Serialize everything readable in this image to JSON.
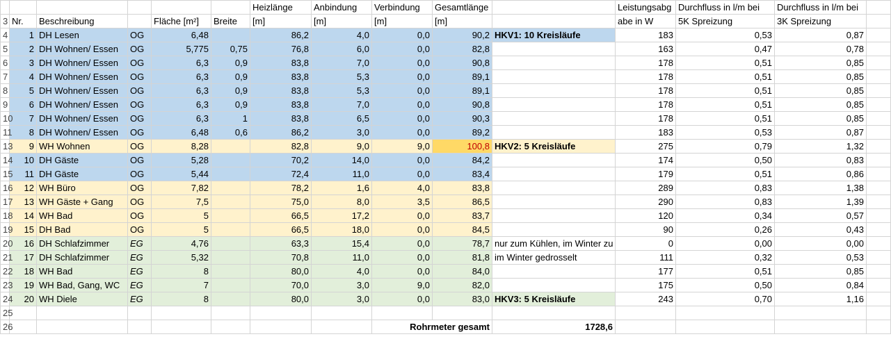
{
  "headers": {
    "row_a": {
      "row_num": "",
      "nr": "",
      "beschreibung": "",
      "etage": "",
      "flaeche": "",
      "breite": "",
      "heizlaenge": "Heizlänge",
      "anbindung": "Anbindung",
      "verbindung": "Verbindung",
      "gesamtlaenge": "Gesamtlänge",
      "note": "",
      "leistung": "Leistungsabg",
      "durchfluss5k": "Durchfluss in l/m bei",
      "durchfluss3k": "Durchfluss in l/m bei"
    },
    "row_b": {
      "row_num": "3",
      "nr": "Nr.",
      "beschreibung": "Beschreibung",
      "etage": "",
      "flaeche": "Fläche [m²]",
      "breite": "Breite",
      "heizlaenge": "[m]",
      "anbindung": "[m]",
      "verbindung": "[m]",
      "gesamtlaenge": "[m]",
      "note": "",
      "leistung": "abe in W",
      "durchfluss5k": "5K Spreizung",
      "durchfluss3k": "3K Spreizung"
    }
  },
  "rows": [
    {
      "row_num": "4",
      "nr": "1",
      "beschreibung": "DH Lesen",
      "etage": "OG",
      "flaeche": "6,48",
      "breite": "",
      "heizlaenge": "86,2",
      "anbindung": "4,0",
      "verbindung": "0,0",
      "gesamtlaenge": "90,2",
      "note": "HKV1: 10 Kreisläufe",
      "leistung": "183",
      "durchfluss5k": "0,53",
      "durchfluss3k": "0,87"
    },
    {
      "row_num": "5",
      "nr": "2",
      "beschreibung": "DH Wohnen/ Essen",
      "etage": "OG",
      "flaeche": "5,775",
      "breite": "0,75",
      "heizlaenge": "76,8",
      "anbindung": "6,0",
      "verbindung": "0,0",
      "gesamtlaenge": "82,8",
      "note": "",
      "leistung": "163",
      "durchfluss5k": "0,47",
      "durchfluss3k": "0,78"
    },
    {
      "row_num": "6",
      "nr": "3",
      "beschreibung": "DH Wohnen/ Essen",
      "etage": "OG",
      "flaeche": "6,3",
      "breite": "0,9",
      "heizlaenge": "83,8",
      "anbindung": "7,0",
      "verbindung": "0,0",
      "gesamtlaenge": "90,8",
      "note": "",
      "leistung": "178",
      "durchfluss5k": "0,51",
      "durchfluss3k": "0,85"
    },
    {
      "row_num": "7",
      "nr": "4",
      "beschreibung": "DH Wohnen/ Essen",
      "etage": "OG",
      "flaeche": "6,3",
      "breite": "0,9",
      "heizlaenge": "83,8",
      "anbindung": "5,3",
      "verbindung": "0,0",
      "gesamtlaenge": "89,1",
      "note": "",
      "leistung": "178",
      "durchfluss5k": "0,51",
      "durchfluss3k": "0,85"
    },
    {
      "row_num": "8",
      "nr": "5",
      "beschreibung": "DH Wohnen/ Essen",
      "etage": "OG",
      "flaeche": "6,3",
      "breite": "0,9",
      "heizlaenge": "83,8",
      "anbindung": "5,3",
      "verbindung": "0,0",
      "gesamtlaenge": "89,1",
      "note": "",
      "leistung": "178",
      "durchfluss5k": "0,51",
      "durchfluss3k": "0,85"
    },
    {
      "row_num": "9",
      "nr": "6",
      "beschreibung": "DH Wohnen/ Essen",
      "etage": "OG",
      "flaeche": "6,3",
      "breite": "0,9",
      "heizlaenge": "83,8",
      "anbindung": "7,0",
      "verbindung": "0,0",
      "gesamtlaenge": "90,8",
      "note": "",
      "leistung": "178",
      "durchfluss5k": "0,51",
      "durchfluss3k": "0,85"
    },
    {
      "row_num": "10",
      "nr": "7",
      "beschreibung": "DH Wohnen/ Essen",
      "etage": "OG",
      "flaeche": "6,3",
      "breite": "1",
      "heizlaenge": "83,8",
      "anbindung": "6,5",
      "verbindung": "0,0",
      "gesamtlaenge": "90,3",
      "note": "",
      "leistung": "178",
      "durchfluss5k": "0,51",
      "durchfluss3k": "0,85"
    },
    {
      "row_num": "11",
      "nr": "8",
      "beschreibung": "DH Wohnen/ Essen",
      "etage": "OG",
      "flaeche": "6,48",
      "breite": "0,6",
      "heizlaenge": "86,2",
      "anbindung": "3,0",
      "verbindung": "0,0",
      "gesamtlaenge": "89,2",
      "note": "",
      "leistung": "183",
      "durchfluss5k": "0,53",
      "durchfluss3k": "0,87"
    },
    {
      "row_num": "13",
      "nr": "9",
      "beschreibung": "WH Wohnen",
      "etage": "OG",
      "flaeche": "8,28",
      "breite": "",
      "heizlaenge": "82,8",
      "anbindung": "9,0",
      "verbindung": "9,0",
      "gesamtlaenge": "100,8",
      "note": "HKV2: 5 Kreisläufe",
      "leistung": "275",
      "durchfluss5k": "0,79",
      "durchfluss3k": "1,32"
    },
    {
      "row_num": "14",
      "nr": "10",
      "beschreibung": "DH Gäste",
      "etage": "OG",
      "flaeche": "5,28",
      "breite": "",
      "heizlaenge": "70,2",
      "anbindung": "14,0",
      "verbindung": "0,0",
      "gesamtlaenge": "84,2",
      "note": "",
      "leistung": "174",
      "durchfluss5k": "0,50",
      "durchfluss3k": "0,83"
    },
    {
      "row_num": "15",
      "nr": "11",
      "beschreibung": "DH Gäste",
      "etage": "OG",
      "flaeche": "5,44",
      "breite": "",
      "heizlaenge": "72,4",
      "anbindung": "11,0",
      "verbindung": "0,0",
      "gesamtlaenge": "83,4",
      "note": "",
      "leistung": "179",
      "durchfluss5k": "0,51",
      "durchfluss3k": "0,86"
    },
    {
      "row_num": "16",
      "nr": "12",
      "beschreibung": "WH Büro",
      "etage": "OG",
      "flaeche": "7,82",
      "breite": "",
      "heizlaenge": "78,2",
      "anbindung": "1,6",
      "verbindung": "4,0",
      "gesamtlaenge": "83,8",
      "note": "",
      "leistung": "289",
      "durchfluss5k": "0,83",
      "durchfluss3k": "1,38"
    },
    {
      "row_num": "17",
      "nr": "13",
      "beschreibung": "WH Gäste + Gang",
      "etage": "OG",
      "flaeche": "7,5",
      "breite": "",
      "heizlaenge": "75,0",
      "anbindung": "8,0",
      "verbindung": "3,5",
      "gesamtlaenge": "86,5",
      "note": "",
      "leistung": "290",
      "durchfluss5k": "0,83",
      "durchfluss3k": "1,39"
    },
    {
      "row_num": "18",
      "nr": "14",
      "beschreibung": "WH Bad",
      "etage": "OG",
      "flaeche": "5",
      "breite": "",
      "heizlaenge": "66,5",
      "anbindung": "17,2",
      "verbindung": "0,0",
      "gesamtlaenge": "83,7",
      "note": "",
      "leistung": "120",
      "durchfluss5k": "0,34",
      "durchfluss3k": "0,57"
    },
    {
      "row_num": "19",
      "nr": "15",
      "beschreibung": "DH Bad",
      "etage": "OG",
      "flaeche": "5",
      "breite": "",
      "heizlaenge": "66,5",
      "anbindung": "18,0",
      "verbindung": "0,0",
      "gesamtlaenge": "84,5",
      "note": "",
      "leistung": "90",
      "durchfluss5k": "0,26",
      "durchfluss3k": "0,43"
    },
    {
      "row_num": "20",
      "nr": "16",
      "beschreibung": "DH Schlafzimmer",
      "etage": "EG",
      "flaeche": "4,76",
      "breite": "",
      "heizlaenge": "63,3",
      "anbindung": "15,4",
      "verbindung": "0,0",
      "gesamtlaenge": "78,7",
      "note": "nur zum Kühlen, im Winter zu",
      "leistung": "0",
      "durchfluss5k": "0,00",
      "durchfluss3k": "0,00"
    },
    {
      "row_num": "21",
      "nr": "17",
      "beschreibung": "DH Schlafzimmer",
      "etage": "EG",
      "flaeche": "5,32",
      "breite": "",
      "heizlaenge": "70,8",
      "anbindung": "11,0",
      "verbindung": "0,0",
      "gesamtlaenge": "81,8",
      "note": "im Winter gedrosselt",
      "leistung": "111",
      "durchfluss5k": "0,32",
      "durchfluss3k": "0,53"
    },
    {
      "row_num": "22",
      "nr": "18",
      "beschreibung": "WH Bad",
      "etage": "EG",
      "flaeche": "8",
      "breite": "",
      "heizlaenge": "80,0",
      "anbindung": "4,0",
      "verbindung": "0,0",
      "gesamtlaenge": "84,0",
      "note": "",
      "leistung": "177",
      "durchfluss5k": "0,51",
      "durchfluss3k": "0,85"
    },
    {
      "row_num": "23",
      "nr": "19",
      "beschreibung": "WH Bad, Gang, WC",
      "etage": "EG",
      "flaeche": "7",
      "breite": "",
      "heizlaenge": "70,0",
      "anbindung": "3,0",
      "verbindung": "9,0",
      "gesamtlaenge": "82,0",
      "note": "",
      "leistung": "175",
      "durchfluss5k": "0,50",
      "durchfluss3k": "0,84"
    },
    {
      "row_num": "24",
      "nr": "20",
      "beschreibung": "WH Diele",
      "etage": "EG",
      "flaeche": "8",
      "breite": "",
      "heizlaenge": "80,0",
      "anbindung": "3,0",
      "verbindung": "0,0",
      "gesamtlaenge": "83,0",
      "note": "HKV3: 5 Kreisläufe",
      "leistung": "243",
      "durchfluss5k": "0,70",
      "durchfluss3k": "1,16"
    }
  ],
  "empty_row_num": "25",
  "total": {
    "row_num": "26",
    "label": "Rohrmeter gesamt",
    "value": "1728,6"
  },
  "colors": {
    "blue": "#bdd7ee",
    "yellow": "#fff2cc",
    "green": "#e2efda",
    "orange": "#ffd966",
    "red_text": "#c00000"
  }
}
